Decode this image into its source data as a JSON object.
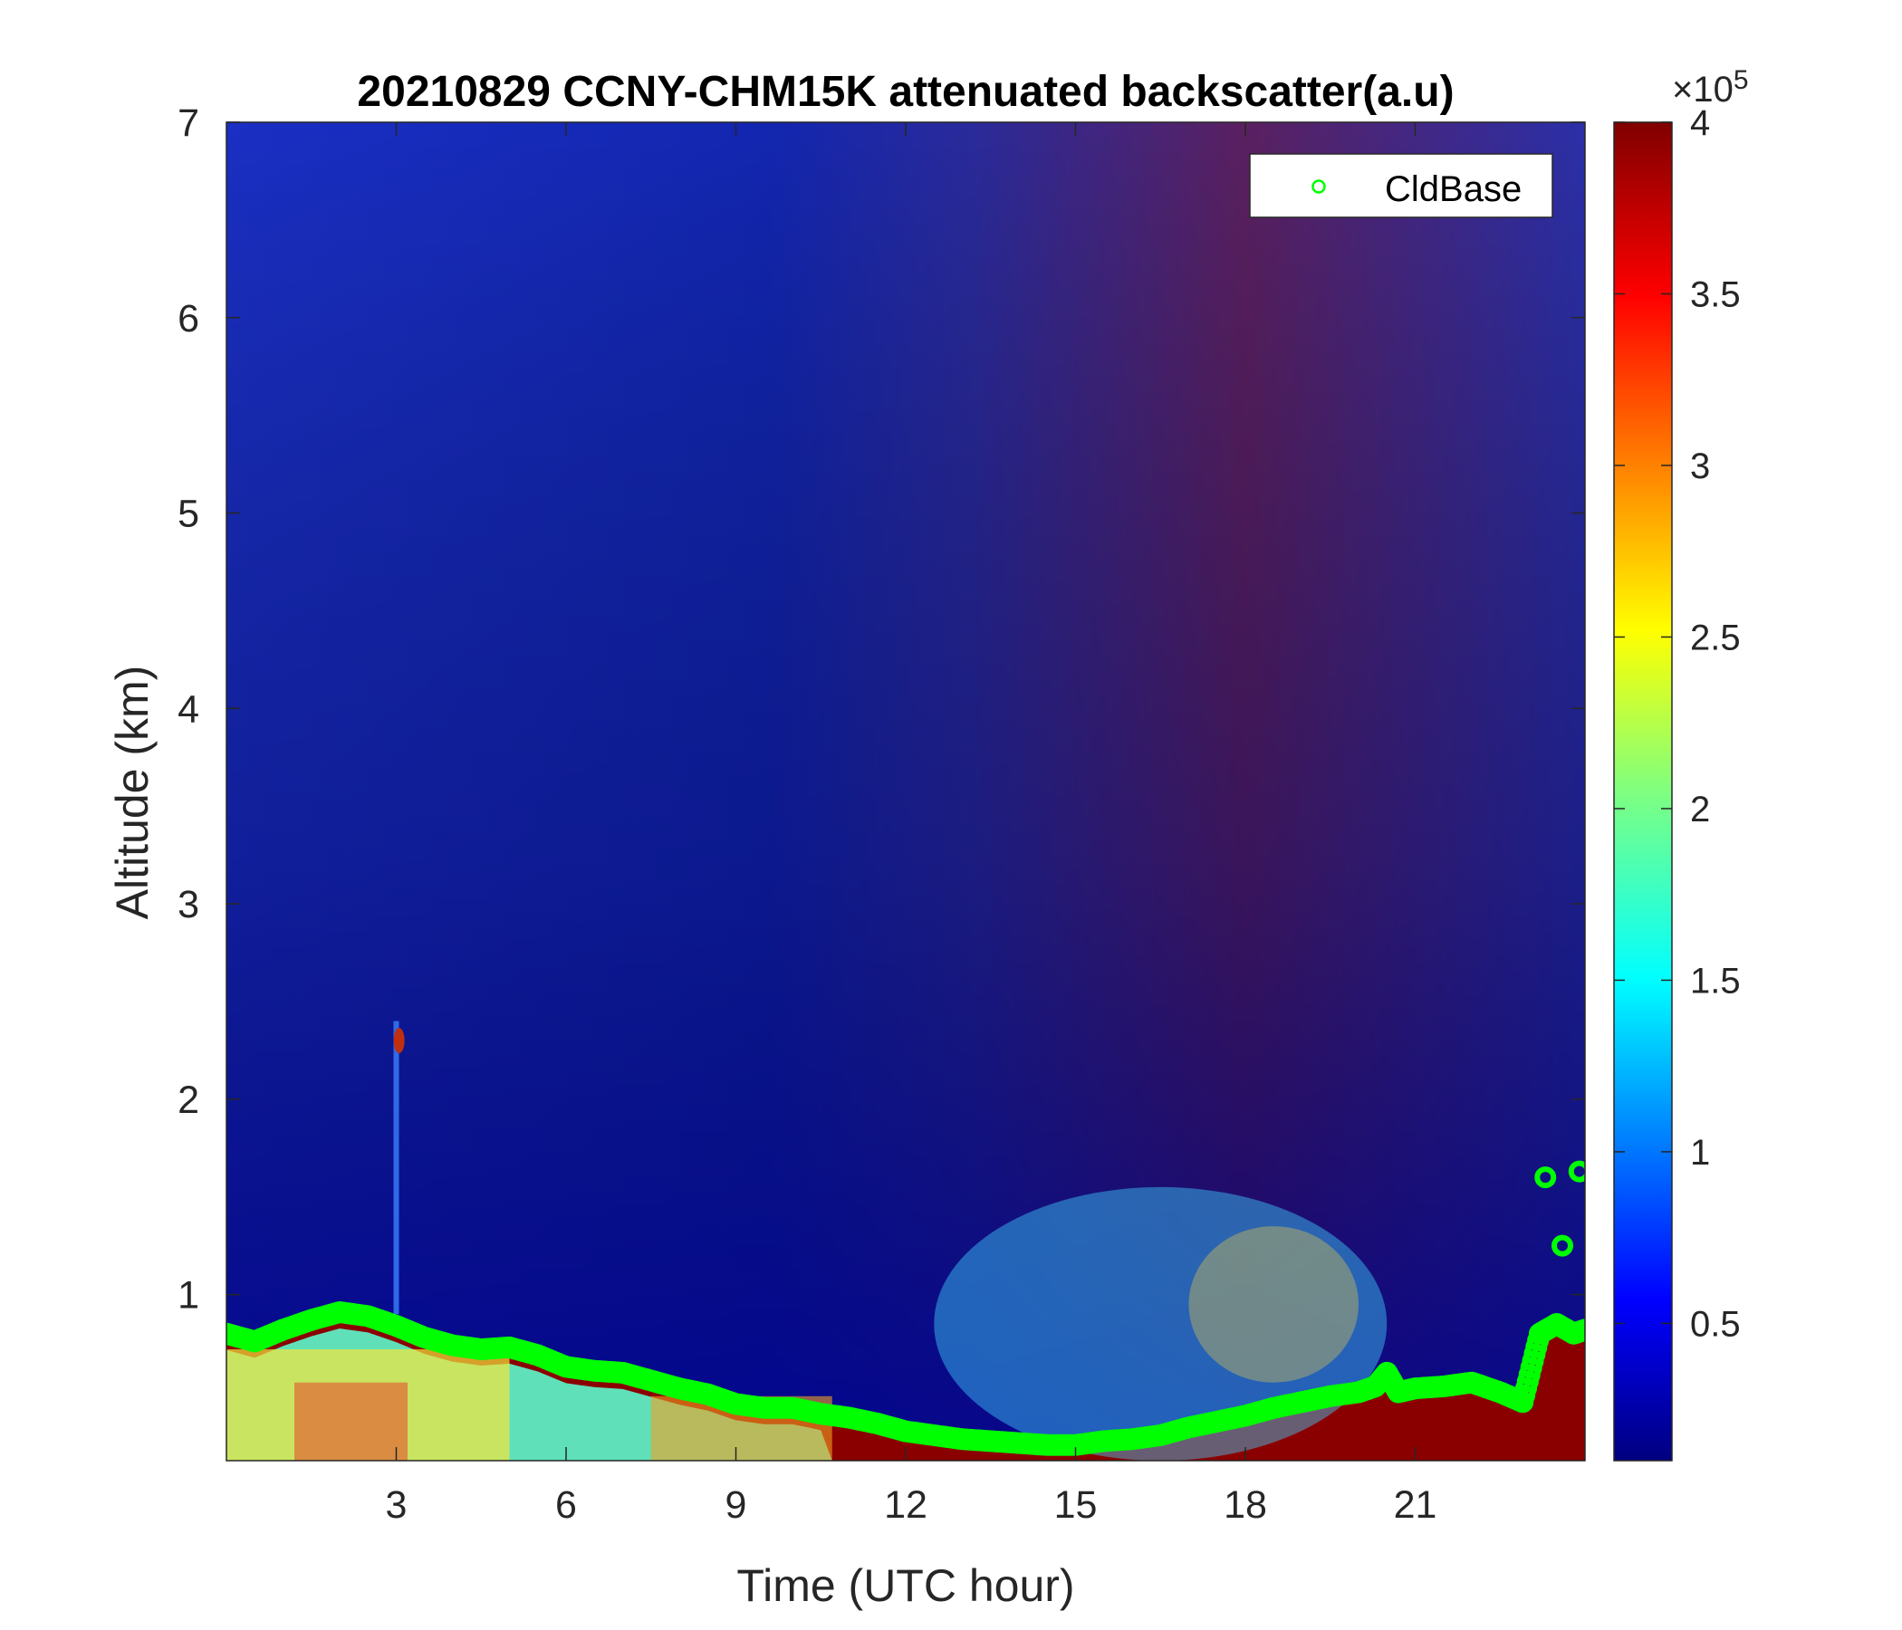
{
  "chart_data": {
    "type": "heatmap",
    "title": "20210829 CCNY-CHM15K attenuated backscatter(a.u)",
    "xlabel": "Time (UTC hour)",
    "ylabel": "Altitude (km)",
    "xlim": [
      0,
      24
    ],
    "ylim": [
      0.15,
      7
    ],
    "xticks": [
      3,
      6,
      9,
      12,
      15,
      18,
      21
    ],
    "xtick_labels": [
      "3",
      "6",
      "9",
      "12",
      "15",
      "18",
      "21"
    ],
    "yticks": [
      1,
      2,
      3,
      4,
      5,
      6,
      7
    ],
    "ytick_labels": [
      "1",
      "2",
      "3",
      "4",
      "5",
      "6",
      "7"
    ],
    "colormap": "jet",
    "colorbar": {
      "range": [
        0.1,
        4.0
      ],
      "ticks": [
        0.5,
        1,
        1.5,
        2,
        2.5,
        3,
        3.5,
        4
      ],
      "tick_labels": [
        "0.5",
        "1",
        "1.5",
        "2",
        "2.5",
        "3",
        "3.5",
        "4"
      ],
      "multiplier_base": "×10",
      "multiplier_exp": "5"
    },
    "legend": {
      "placement": "top-right",
      "entries": [
        {
          "name": "CldBase",
          "marker": "open-circle",
          "color": "#00ff00"
        }
      ]
    },
    "series": [
      {
        "name": "CldBase",
        "type": "scatter",
        "color": "#00ff00",
        "x": [
          0.0,
          0.5,
          1.0,
          1.5,
          2.0,
          2.5,
          3.0,
          3.5,
          4.0,
          4.5,
          5.0,
          5.5,
          6.0,
          6.5,
          7.0,
          7.5,
          8.0,
          8.5,
          9.0,
          9.5,
          10.0,
          10.5,
          11.0,
          11.5,
          12.0,
          12.5,
          13.0,
          13.5,
          14.0,
          14.5,
          15.0,
          15.5,
          16.0,
          16.5,
          17.0,
          17.5,
          18.0,
          18.5,
          19.0,
          19.5,
          20.0,
          20.3,
          20.5,
          20.7,
          21.0,
          21.5,
          22.0,
          22.5,
          22.9,
          23.2,
          23.5,
          23.8,
          24.0,
          23.3,
          23.6,
          23.9
        ],
        "y": [
          0.8,
          0.76,
          0.82,
          0.87,
          0.91,
          0.89,
          0.84,
          0.78,
          0.74,
          0.72,
          0.73,
          0.69,
          0.63,
          0.61,
          0.6,
          0.56,
          0.52,
          0.49,
          0.44,
          0.42,
          0.42,
          0.39,
          0.37,
          0.34,
          0.3,
          0.28,
          0.26,
          0.25,
          0.24,
          0.23,
          0.23,
          0.25,
          0.26,
          0.28,
          0.32,
          0.35,
          0.38,
          0.42,
          0.45,
          0.48,
          0.5,
          0.53,
          0.6,
          0.5,
          0.52,
          0.53,
          0.55,
          0.5,
          0.45,
          0.8,
          0.85,
          0.8,
          0.82,
          1.6,
          1.25,
          1.63
        ]
      }
    ]
  }
}
